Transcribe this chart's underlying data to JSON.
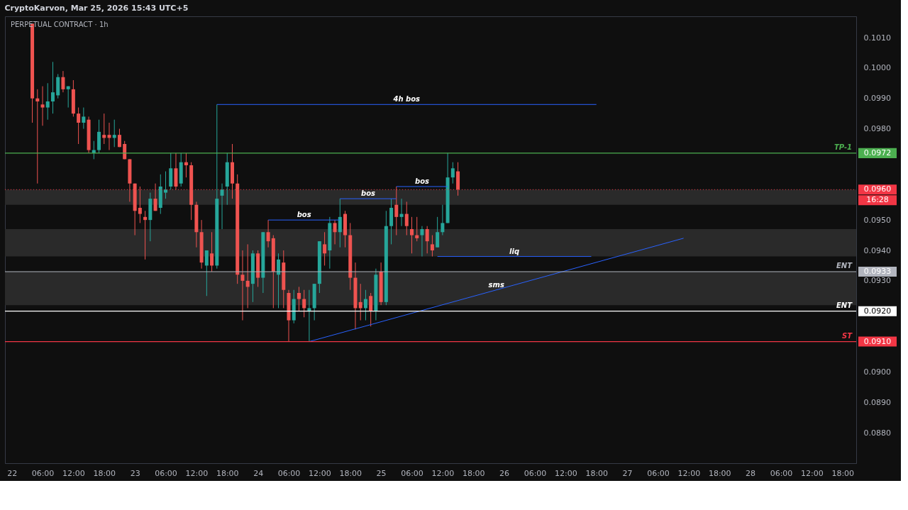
{
  "chart_data": {
    "type": "candlestick",
    "title": "PERPETUAL CONTRACT · 1h",
    "annotations": [
      "CryptoKarvon, Mar 25, 2026 15:43 UTC+5",
      "0.0972",
      "0.0960",
      "16:28",
      "0.0933",
      "0.0920",
      "0.0910"
    ],
    "colors": [
      "#ef5350",
      "#ef5350",
      "#ef5350",
      "#26a69a",
      "#26a69a",
      "#26a69a",
      "#ef5350",
      "#26a69a",
      "#ef5350",
      "#ef5350",
      "#26a69a",
      "#ef5350",
      "#26a69a",
      "#26a69a",
      "#ef5350",
      "#ef5350",
      "#26a69a",
      "#ef5350",
      "#ef5350",
      "#ef5350",
      "#ef5350",
      "#ef5350",
      "#ef5350",
      "#26a69a",
      "#ef5350",
      "#26a69a",
      "#26a69a",
      "#26a69a",
      "#ef5350",
      "#26a69a",
      "#ef5350",
      "#ef5350",
      "#ef5350",
      "#ef5350",
      "#26a69a",
      "#ef5350",
      "#26a69a",
      "#26a69a",
      "#26a69a",
      "#ef5350",
      "#ef5350",
      "#ef5350",
      "#ef5350",
      "#26a69a",
      "#ef5350",
      "#26a69a",
      "#ef5350",
      "#ef5350",
      "#26a69a",
      "#ef5350",
      "#ef5350",
      "#26a69a",
      "#ef5350",
      "#ef5350",
      "#26a69a",
      "#26a69a",
      "#26a69a",
      "#ef5350",
      "#26a69a",
      "#ef5350",
      "#26a69a",
      "#ef5350",
      "#ef5350",
      "#ef5350",
      "#ef5350",
      "#26a69a",
      "#ef5350",
      "#26a69a",
      "#ef5350",
      "#26a69a",
      "#26a69a",
      "#ef5350",
      "#26a69a",
      "#ef5350",
      "#ef5350",
      "#ef5350",
      "#26a69a",
      "#ef5350",
      "#ef5350",
      "#26a69a",
      "#26a69a",
      "#26a69a",
      "#26a69a",
      "#ef5350"
    ],
    "x": [
      "2026-03-22T04:00",
      "2026-03-22T05:00",
      "2026-03-22T06:00",
      "2026-03-22T07:00",
      "2026-03-22T08:00",
      "2026-03-22T09:00",
      "2026-03-22T10:00",
      "2026-03-22T11:00",
      "2026-03-22T12:00",
      "2026-03-22T13:00",
      "2026-03-22T14:00",
      "2026-03-22T15:00",
      "2026-03-22T16:00",
      "2026-03-22T17:00",
      "2026-03-22T18:00",
      "2026-03-22T19:00",
      "2026-03-22T20:00",
      "2026-03-22T21:00",
      "2026-03-22T22:00",
      "2026-03-22T23:00",
      "2026-03-23T00:00",
      "2026-03-23T01:00",
      "2026-03-23T02:00",
      "2026-03-23T03:00",
      "2026-03-23T04:00",
      "2026-03-23T05:00",
      "2026-03-23T06:00",
      "2026-03-23T07:00",
      "2026-03-23T08:00",
      "2026-03-23T09:00",
      "2026-03-23T10:00",
      "2026-03-23T11:00",
      "2026-03-23T12:00",
      "2026-03-23T13:00",
      "2026-03-23T14:00",
      "2026-03-23T15:00",
      "2026-03-23T16:00",
      "2026-03-23T17:00",
      "2026-03-23T18:00",
      "2026-03-23T19:00",
      "2026-03-23T20:00",
      "2026-03-23T21:00",
      "2026-03-23T22:00",
      "2026-03-23T23:00",
      "2026-03-24T00:00",
      "2026-03-24T01:00",
      "2026-03-24T02:00",
      "2026-03-24T03:00",
      "2026-03-24T04:00",
      "2026-03-24T05:00",
      "2026-03-24T06:00",
      "2026-03-24T07:00",
      "2026-03-24T08:00",
      "2026-03-24T09:00",
      "2026-03-24T10:00",
      "2026-03-24T11:00",
      "2026-03-24T12:00",
      "2026-03-24T13:00",
      "2026-03-24T14:00",
      "2026-03-24T15:00",
      "2026-03-24T16:00",
      "2026-03-24T17:00",
      "2026-03-24T18:00",
      "2026-03-24T19:00",
      "2026-03-24T20:00",
      "2026-03-24T21:00",
      "2026-03-24T22:00",
      "2026-03-24T23:00",
      "2026-03-25T00:00",
      "2026-03-25T01:00",
      "2026-03-25T02:00",
      "2026-03-25T03:00",
      "2026-03-25T04:00",
      "2026-03-25T05:00",
      "2026-03-25T06:00",
      "2026-03-25T07:00",
      "2026-03-25T08:00",
      "2026-03-25T09:00",
      "2026-03-25T10:00",
      "2026-03-25T11:00",
      "2026-03-25T12:00",
      "2026-03-25T13:00",
      "2026-03-25T14:00",
      "2026-03-25T15:00"
    ],
    "ohlc": [
      [
        0.10146,
        0.10146,
        0.0982,
        0.099
      ],
      [
        0.099,
        0.0993,
        0.0962,
        0.0989
      ],
      [
        0.0988,
        0.0994,
        0.0981,
        0.0987
      ],
      [
        0.0987,
        0.0995,
        0.0983,
        0.0989
      ],
      [
        0.0989,
        0.1002,
        0.0985,
        0.0992
      ],
      [
        0.0991,
        0.0998,
        0.099,
        0.0997
      ],
      [
        0.0997,
        0.0999,
        0.0992,
        0.0993
      ],
      [
        0.0993,
        0.0994,
        0.0987,
        0.0994
      ],
      [
        0.0993,
        0.0996,
        0.0984,
        0.0985
      ],
      [
        0.0985,
        0.0987,
        0.0975,
        0.0982
      ],
      [
        0.0982,
        0.0987,
        0.098,
        0.0984
      ],
      [
        0.0983,
        0.0984,
        0.0972,
        0.0973
      ],
      [
        0.0972,
        0.0976,
        0.097,
        0.0973
      ],
      [
        0.0973,
        0.0983,
        0.0972,
        0.0979
      ],
      [
        0.0978,
        0.0985,
        0.0975,
        0.0977
      ],
      [
        0.0978,
        0.0982,
        0.0973,
        0.0977
      ],
      [
        0.0977,
        0.0983,
        0.0974,
        0.0978
      ],
      [
        0.0978,
        0.098,
        0.0974,
        0.0974
      ],
      [
        0.0975,
        0.0976,
        0.097,
        0.097
      ],
      [
        0.097,
        0.097,
        0.0956,
        0.0962
      ],
      [
        0.0962,
        0.0962,
        0.0945,
        0.0953
      ],
      [
        0.0954,
        0.0961,
        0.0949,
        0.0952
      ],
      [
        0.0951,
        0.0953,
        0.0937,
        0.095
      ],
      [
        0.095,
        0.0959,
        0.0943,
        0.0957
      ],
      [
        0.0957,
        0.0962,
        0.0953,
        0.0953
      ],
      [
        0.0954,
        0.0965,
        0.0952,
        0.0961
      ],
      [
        0.0959,
        0.0966,
        0.0957,
        0.096
      ],
      [
        0.0961,
        0.0972,
        0.096,
        0.0967
      ],
      [
        0.0967,
        0.0972,
        0.096,
        0.0961
      ],
      [
        0.0962,
        0.0972,
        0.0961,
        0.0969
      ],
      [
        0.0969,
        0.0972,
        0.0964,
        0.0968
      ],
      [
        0.0968,
        0.0969,
        0.095,
        0.0955
      ],
      [
        0.0955,
        0.0956,
        0.0941,
        0.0946
      ],
      [
        0.0946,
        0.095,
        0.0934,
        0.0936
      ],
      [
        0.0935,
        0.094,
        0.0925,
        0.094
      ],
      [
        0.0939,
        0.0946,
        0.0933,
        0.0935
      ],
      [
        0.0935,
        0.0988,
        0.0934,
        0.0957
      ],
      [
        0.0958,
        0.0962,
        0.0947,
        0.096
      ],
      [
        0.0961,
        0.0972,
        0.0955,
        0.0969
      ],
      [
        0.0969,
        0.0975,
        0.0957,
        0.0962
      ],
      [
        0.0962,
        0.0965,
        0.0929,
        0.0932
      ],
      [
        0.0932,
        0.094,
        0.0917,
        0.093
      ],
      [
        0.093,
        0.0942,
        0.0921,
        0.0928
      ],
      [
        0.0929,
        0.094,
        0.0923,
        0.0939
      ],
      [
        0.0939,
        0.094,
        0.0928,
        0.0931
      ],
      [
        0.0931,
        0.0946,
        0.0926,
        0.0946
      ],
      [
        0.0946,
        0.095,
        0.0941,
        0.0943
      ],
      [
        0.0944,
        0.0945,
        0.0921,
        0.0933
      ],
      [
        0.0932,
        0.0939,
        0.0921,
        0.0937
      ],
      [
        0.0936,
        0.094,
        0.0921,
        0.0927
      ],
      [
        0.0926,
        0.0927,
        0.091,
        0.0917
      ],
      [
        0.0917,
        0.0927,
        0.0916,
        0.0924
      ],
      [
        0.0926,
        0.0928,
        0.092,
        0.0924
      ],
      [
        0.0924,
        0.0927,
        0.0918,
        0.0921
      ],
      [
        0.092,
        0.0927,
        0.091,
        0.0921
      ],
      [
        0.0921,
        0.0929,
        0.0917,
        0.0929
      ],
      [
        0.0929,
        0.0943,
        0.0926,
        0.0943
      ],
      [
        0.0942,
        0.0946,
        0.0935,
        0.0939
      ],
      [
        0.094,
        0.0951,
        0.0934,
        0.0949
      ],
      [
        0.0949,
        0.095,
        0.0942,
        0.0946
      ],
      [
        0.0946,
        0.0957,
        0.0941,
        0.0951
      ],
      [
        0.0952,
        0.0953,
        0.0941,
        0.0945
      ],
      [
        0.0945,
        0.0949,
        0.0927,
        0.0931
      ],
      [
        0.0931,
        0.0936,
        0.0914,
        0.0921
      ],
      [
        0.0923,
        0.0929,
        0.0917,
        0.0921
      ],
      [
        0.0921,
        0.0927,
        0.0917,
        0.0924
      ],
      [
        0.0925,
        0.0926,
        0.0915,
        0.092
      ],
      [
        0.092,
        0.0934,
        0.0917,
        0.0932
      ],
      [
        0.0933,
        0.0936,
        0.0922,
        0.0923
      ],
      [
        0.0923,
        0.0953,
        0.0922,
        0.0948
      ],
      [
        0.0948,
        0.0957,
        0.0942,
        0.0954
      ],
      [
        0.0955,
        0.0961,
        0.0945,
        0.0951
      ],
      [
        0.0951,
        0.0957,
        0.0948,
        0.0952
      ],
      [
        0.0952,
        0.0956,
        0.0945,
        0.0948
      ],
      [
        0.0947,
        0.0951,
        0.0939,
        0.0945
      ],
      [
        0.0945,
        0.0951,
        0.0943,
        0.0944
      ],
      [
        0.0945,
        0.0948,
        0.0938,
        0.0947
      ],
      [
        0.0947,
        0.0948,
        0.0939,
        0.0943
      ],
      [
        0.0942,
        0.0945,
        0.0938,
        0.094
      ],
      [
        0.0941,
        0.0951,
        0.0941,
        0.0946
      ],
      [
        0.0946,
        0.0955,
        0.0945,
        0.0949
      ],
      [
        0.0949,
        0.0972,
        0.0949,
        0.0964
      ],
      [
        0.0964,
        0.0969,
        0.0962,
        0.0967
      ],
      [
        0.0966,
        0.0969,
        0.0958,
        0.096
      ]
    ],
    "series": [
      {
        "name": "4h bos",
        "type": "line",
        "color": "#2962ff",
        "x": [
          "2026-03-23T16:00",
          "2026-03-26T18:00"
        ],
        "values": [
          0.0988,
          0.0988
        ]
      },
      {
        "name": "bos",
        "type": "line",
        "color": "#2962ff",
        "x": [
          "2026-03-24T02:00",
          "2026-03-24T16:00"
        ],
        "values": [
          0.095,
          0.095
        ]
      },
      {
        "name": "bos",
        "type": "line",
        "color": "#2962ff",
        "x": [
          "2026-03-24T16:00",
          "2026-03-25T03:00"
        ],
        "values": [
          0.0957,
          0.0957
        ]
      },
      {
        "name": "bos",
        "type": "line",
        "color": "#2962ff",
        "x": [
          "2026-03-25T03:00",
          "2026-03-25T13:00"
        ],
        "values": [
          0.0961,
          0.0961
        ]
      },
      {
        "name": "liq",
        "type": "line",
        "color": "#2962ff",
        "x": [
          "2026-03-25T11:00",
          "2026-03-26T17:00"
        ],
        "values": [
          0.0938,
          0.0938
        ]
      },
      {
        "name": "sms",
        "type": "line",
        "color": "#2962ff",
        "x": [
          "2026-03-24T10:00",
          "2026-03-27T11:00"
        ],
        "values": [
          0.091,
          0.0944
        ]
      }
    ],
    "ref_lines": [
      {
        "axis": "y",
        "value": 0.0972,
        "label": "TP-1",
        "color": "#4caf50"
      },
      {
        "axis": "y",
        "value": 0.096,
        "color": "#f23645",
        "line_style": "dotted"
      },
      {
        "axis": "y",
        "value": 0.0933,
        "label": "ENT",
        "color": "#b2b5be"
      },
      {
        "axis": "y",
        "value": 0.092,
        "label": "ENT",
        "color": "#ffffff"
      },
      {
        "axis": "y",
        "value": 0.091,
        "label": "ST",
        "color": "#f23645"
      }
    ],
    "bands": [
      {
        "axis": "y",
        "from": 0.0955,
        "to": 0.096,
        "color": "#2a2a2a"
      },
      {
        "axis": "y",
        "from": 0.0938,
        "to": 0.0947,
        "color": "#2a2a2a"
      },
      {
        "axis": "y",
        "from": 0.0922,
        "to": 0.0933,
        "color": "#2a2a2a"
      }
    ],
    "xlim": [
      "2026-03-21T22:40",
      "2026-03-28T20:40"
    ],
    "xticks": [
      {
        "value": "2026-03-22T00:00",
        "label": "22"
      },
      {
        "value": "2026-03-22T06:00",
        "label": "06:00"
      },
      {
        "value": "2026-03-22T12:00",
        "label": "12:00"
      },
      {
        "value": "2026-03-22T18:00",
        "label": "18:00"
      },
      {
        "value": "2026-03-23T00:00",
        "label": "23"
      },
      {
        "value": "2026-03-23T06:00",
        "label": "06:00"
      },
      {
        "value": "2026-03-23T12:00",
        "label": "12:00"
      },
      {
        "value": "2026-03-23T18:00",
        "label": "18:00"
      },
      {
        "value": "2026-03-24T00:00",
        "label": "24"
      },
      {
        "value": "2026-03-24T06:00",
        "label": "06:00"
      },
      {
        "value": "2026-03-24T12:00",
        "label": "12:00"
      },
      {
        "value": "2026-03-24T18:00",
        "label": "18:00"
      },
      {
        "value": "2026-03-25T00:00",
        "label": "25"
      },
      {
        "value": "2026-03-25T06:00",
        "label": "06:00"
      },
      {
        "value": "2026-03-25T12:00",
        "label": "12:00"
      },
      {
        "value": "2026-03-25T18:00",
        "label": "18:00"
      },
      {
        "value": "2026-03-26T00:00",
        "label": "26"
      },
      {
        "value": "2026-03-26T06:00",
        "label": "06:00"
      },
      {
        "value": "2026-03-26T12:00",
        "label": "12:00"
      },
      {
        "value": "2026-03-26T18:00",
        "label": "18:00"
      },
      {
        "value": "2026-03-27T00:00",
        "label": "27"
      },
      {
        "value": "2026-03-27T06:00",
        "label": "06:00"
      },
      {
        "value": "2026-03-27T12:00",
        "label": "12:00"
      },
      {
        "value": "2026-03-27T18:00",
        "label": "18:00"
      },
      {
        "value": "2026-03-28T00:00",
        "label": "28"
      },
      {
        "value": "2026-03-28T06:00",
        "label": "06:00"
      },
      {
        "value": "2026-03-28T12:00",
        "label": "12:00"
      },
      {
        "value": "2026-03-28T18:00",
        "label": "18:00"
      }
    ],
    "ylim": [
      0.087,
      0.1017
    ],
    "yticks": [
      {
        "value": 0.088,
        "label": "0.0880"
      },
      {
        "value": 0.089,
        "label": "0.0890"
      },
      {
        "value": 0.09,
        "label": "0.0900"
      },
      {
        "value": 0.093,
        "label": "0.0930"
      },
      {
        "value": 0.094,
        "label": "0.0940"
      },
      {
        "value": 0.095,
        "label": "0.0950"
      },
      {
        "value": 0.098,
        "label": "0.0980"
      },
      {
        "value": 0.099,
        "label": "0.0990"
      },
      {
        "value": 0.1,
        "label": "0.1000"
      },
      {
        "value": 0.101,
        "label": "0.1010"
      }
    ],
    "grid": false
  }
}
